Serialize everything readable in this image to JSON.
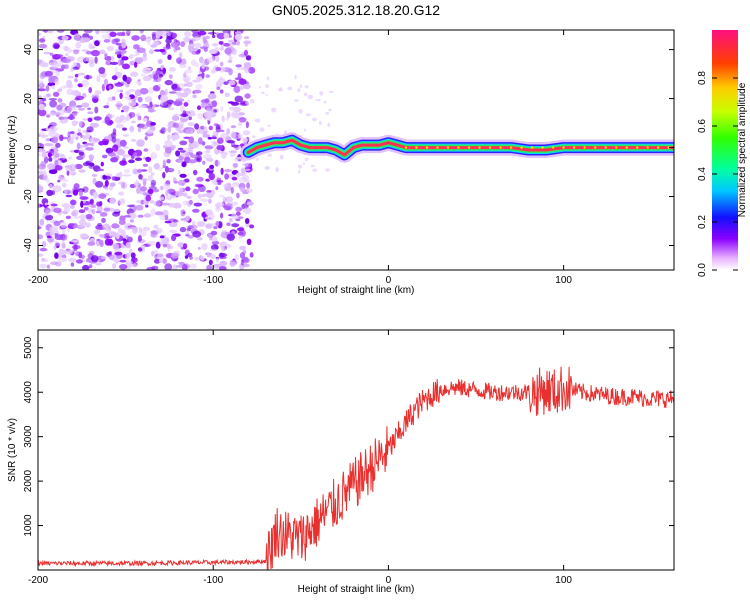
{
  "title": "GN05.2025.312.18.20.G12",
  "chart_data": [
    {
      "type": "heatmap",
      "xlabel": "Height of straight line (km)",
      "ylabel": "Frequency (Hz)",
      "xlim": [
        -200,
        163
      ],
      "ylim": [
        -50,
        48
      ],
      "xticks": [
        -200,
        -100,
        0,
        100
      ],
      "yticks": [
        -40,
        -20,
        0,
        20,
        40
      ],
      "colorbar": {
        "label": "Normalized spectral amplitude",
        "range": [
          0,
          1
        ],
        "ticks": [
          0.0,
          0.2,
          0.4,
          0.6,
          0.8
        ]
      },
      "noise_region": {
        "x_from": -200,
        "x_to": -78
      },
      "signal_track": {
        "x": [
          -80,
          -75,
          -70,
          -65,
          -60,
          -55,
          -50,
          -45,
          -40,
          -35,
          -30,
          -25,
          -20,
          -15,
          -10,
          -5,
          0,
          5,
          10,
          30,
          50,
          70,
          80,
          90,
          100,
          120,
          140,
          163
        ],
        "freq": [
          -2,
          0,
          1,
          2,
          2,
          3,
          1,
          0,
          0,
          0,
          -1,
          -3,
          0,
          1,
          1,
          1,
          2,
          1,
          0,
          0,
          0,
          0,
          -1,
          -1,
          0,
          0,
          0,
          0
        ]
      }
    },
    {
      "type": "line",
      "xlabel": "Height of straight line (km)",
      "ylabel": "SNR (10 * v/v)",
      "xlim": [
        -200,
        163
      ],
      "ylim": [
        0,
        5400
      ],
      "xticks": [
        -200,
        -100,
        0,
        100
      ],
      "yticks": [
        1000,
        2000,
        3000,
        4000,
        5000
      ],
      "color": "#e8302f",
      "series": [
        {
          "name": "SNR",
          "x": [
            -200,
            -150,
            -100,
            -80,
            -70,
            -67,
            -64,
            -60,
            -55,
            -50,
            -45,
            -40,
            -35,
            -30,
            -25,
            -20,
            -15,
            -10,
            -5,
            0,
            5,
            10,
            15,
            20,
            25,
            30,
            35,
            40,
            50,
            60,
            70,
            80,
            85,
            90,
            95,
            100,
            110,
            120,
            130,
            140,
            150,
            163
          ],
          "y": [
            150,
            150,
            170,
            180,
            200,
            500,
            900,
            800,
            750,
            700,
            900,
            1100,
            1300,
            1500,
            1700,
            1900,
            2100,
            2300,
            2500,
            2700,
            3000,
            3300,
            3600,
            3800,
            3950,
            4050,
            4100,
            4100,
            4050,
            4000,
            4000,
            4000,
            4000,
            4050,
            4000,
            4100,
            4000,
            3950,
            3900,
            3900,
            3850,
            3850
          ]
        }
      ]
    }
  ]
}
